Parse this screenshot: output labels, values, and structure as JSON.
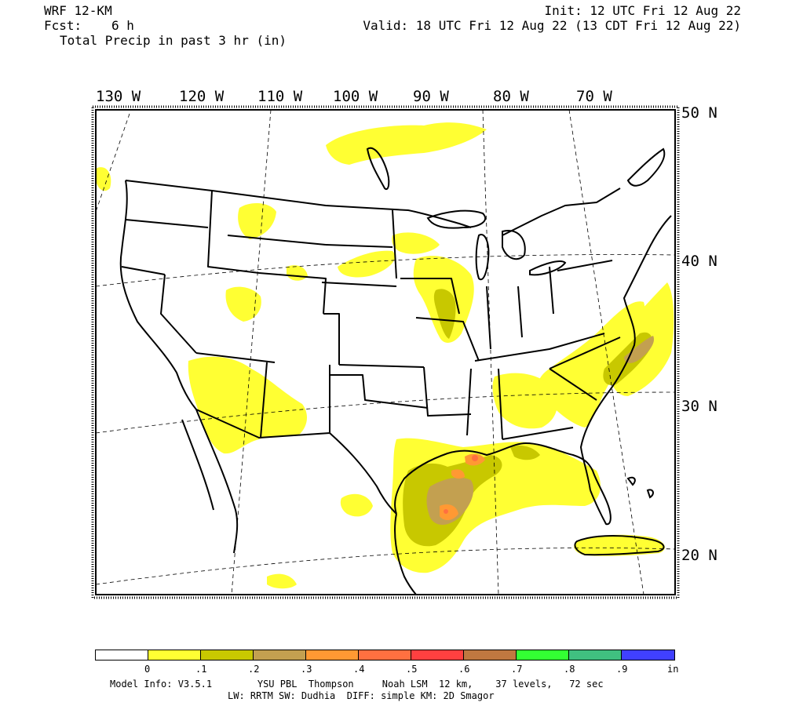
{
  "header": {
    "model": "WRF 12-KM",
    "fcst_label": "Fcst:",
    "fcst_value": "6 h",
    "field": "Total Precip in past 3 hr (in)",
    "init": "Init: 12 UTC Fri 12 Aug 22",
    "valid": "Valid: 18 UTC Fri 12 Aug 22 (13 CDT Fri 12 Aug 22)"
  },
  "map": {
    "lon_labels": [
      "130 W",
      "120 W",
      "110 W",
      "100 W",
      "90 W",
      "80 W",
      "70 W"
    ],
    "lat_labels": [
      "50 N",
      "40 N",
      "30 N",
      "20 N"
    ],
    "colors": {
      "frame": "#000000",
      "land": "#ffffff",
      "precip_0": "#ffff33",
      "precip_1": "#c8c800",
      "precip_2": "#c3a050",
      "precip_3": "#ff9933",
      "precip_4": "#ff7040"
    }
  },
  "colorbar": {
    "colors": [
      "#ffffff",
      "#ffff33",
      "#c8c800",
      "#c3a050",
      "#ff9933",
      "#ff7040",
      "#ff4040",
      "#c07840",
      "#33ff33",
      "#40c080",
      "#4040ff"
    ],
    "labels": [
      "0",
      ".1",
      ".2",
      ".3",
      ".4",
      ".5",
      ".6",
      ".7",
      ".8",
      ".9",
      "in"
    ]
  },
  "footer": {
    "line1": "Model Info: V3.5.1        YSU PBL  Thompson     Noah LSM  12 km,    37 levels,   72 sec",
    "line2": "LW: RRTM SW: Dudhia  DIFF: simple KM: 2D Smagor"
  }
}
